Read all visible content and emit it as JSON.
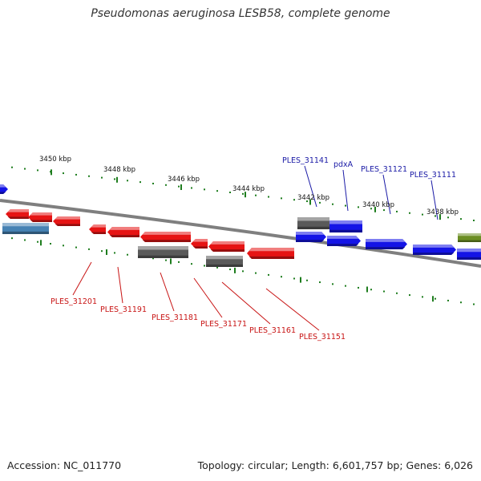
{
  "title": "Pseudomonas aeruginosa LESB58, complete genome",
  "footer": {
    "accession": "Accession: NC_011770",
    "topology": "Topology: circular; Length: 6,601,757 bp; Genes: 6,026"
  },
  "scale_ticks": [
    "3450 kbp",
    "3448 kbp",
    "3446 kbp",
    "3444 kbp",
    "3442 kbp",
    "3440 kbp",
    "3438 kbp"
  ],
  "gene_labels": {
    "forward": [
      "PLES_31141",
      "pdxA",
      "PLES_31121",
      "PLES_31111"
    ],
    "reverse": [
      "PLES_31201",
      "PLES_31191",
      "PLES_31181",
      "PLES_31171",
      "PLES_31161",
      "PLES_31151"
    ]
  },
  "colors": {
    "forward_label": "#1a1aa6",
    "reverse_label": "#c81414",
    "forward_gene": "#1414e6",
    "reverse_gene": "#e61414",
    "grey_gene": "#5a5a5a",
    "steelblue_gene": "#4682b4",
    "green_gene": "#6b8e23",
    "backbone": "#7f7f7f",
    "tick": "#1e7d1e"
  }
}
